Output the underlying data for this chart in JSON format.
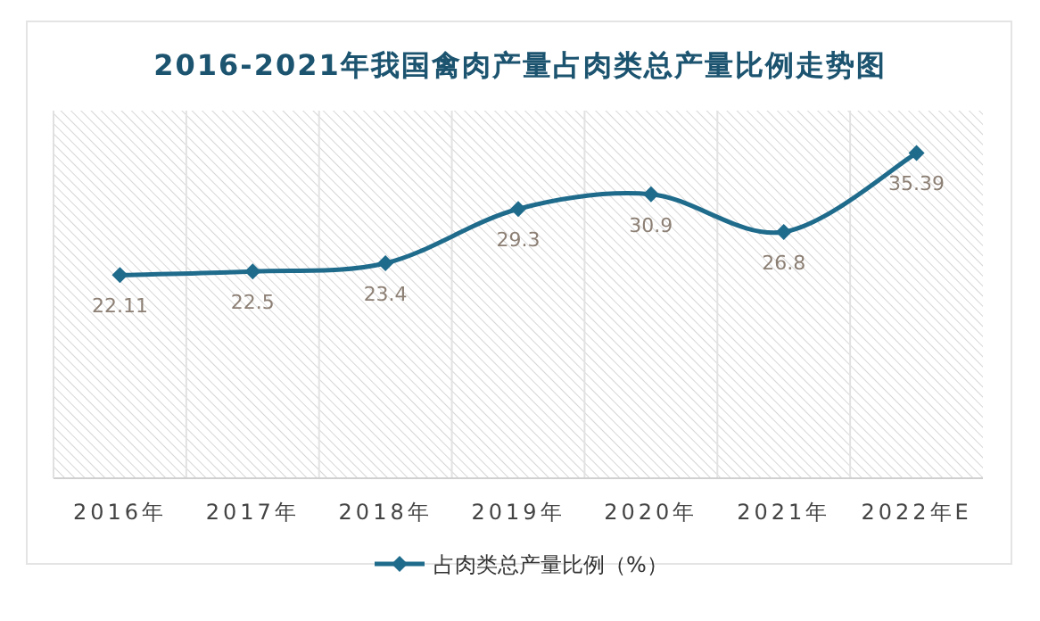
{
  "chart_data": {
    "type": "line",
    "title": "2016-2021年我国禽肉产量占肉类总产量比例走势图",
    "categories": [
      "2016年",
      "2017年",
      "2018年",
      "2019年",
      "2020年",
      "2021年",
      "2022年E"
    ],
    "series": [
      {
        "name": "占肉类总产量比例（%）",
        "color": "#1f6b8c",
        "values": [
          22.11,
          22.5,
          23.4,
          29.3,
          30.9,
          26.8,
          35.39
        ]
      }
    ],
    "ylim": [
      0,
      40
    ],
    "tick_labels": "x",
    "data_labels": true,
    "marker": "diamond",
    "grid": "x",
    "legend": "bottom",
    "line_style": "solid"
  }
}
